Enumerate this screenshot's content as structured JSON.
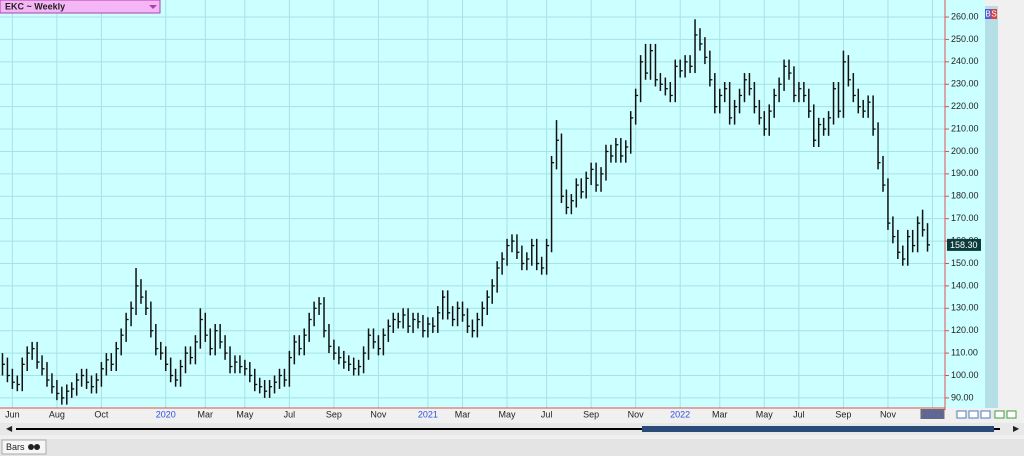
{
  "chart_data": {
    "type": "ohlc",
    "title": "EKC ~ Weekly",
    "tab_label": "Bars",
    "side_labels": [
      "B",
      "S"
    ],
    "color": "#111111",
    "grid": true,
    "ylim": [
      85.5,
      267.6
    ],
    "yticks": [
      {
        "value": 90,
        "label": "90.00"
      },
      {
        "value": 100,
        "label": "100.00"
      },
      {
        "value": 110,
        "label": "110.00"
      },
      {
        "value": 120,
        "label": "120.00"
      },
      {
        "value": 130,
        "label": "130.00"
      },
      {
        "value": 140,
        "label": "140.00"
      },
      {
        "value": 150,
        "label": "150.00"
      },
      {
        "value": 160,
        "label": "160.00"
      },
      {
        "value": 170,
        "label": "170.00"
      },
      {
        "value": 180,
        "label": "180.00"
      },
      {
        "value": 190,
        "label": "190.00"
      },
      {
        "value": 200,
        "label": "200.00"
      },
      {
        "value": 210,
        "label": "210.00"
      },
      {
        "value": 220,
        "label": "220.00"
      },
      {
        "value": 230,
        "label": "230.00"
      },
      {
        "value": 240,
        "label": "240.00"
      },
      {
        "value": 250,
        "label": "250.00"
      },
      {
        "value": 260,
        "label": "260.00"
      }
    ],
    "xticks": [
      {
        "value": 2,
        "label": "Jun"
      },
      {
        "value": 11,
        "label": "Aug"
      },
      {
        "value": 20,
        "label": "Oct"
      },
      {
        "value": 33,
        "label": "2020"
      },
      {
        "value": 41,
        "label": "Mar"
      },
      {
        "value": 49,
        "label": "May"
      },
      {
        "value": 58,
        "label": "Jul"
      },
      {
        "value": 67,
        "label": "Sep"
      },
      {
        "value": 76,
        "label": "Nov"
      },
      {
        "value": 86,
        "label": "2021"
      },
      {
        "value": 93,
        "label": "Mar"
      },
      {
        "value": 102,
        "label": "May"
      },
      {
        "value": 110,
        "label": "Jul"
      },
      {
        "value": 119,
        "label": "Sep"
      },
      {
        "value": 128,
        "label": "Nov"
      },
      {
        "value": 137,
        "label": "2022"
      },
      {
        "value": 145,
        "label": "Mar"
      },
      {
        "value": 154,
        "label": "May"
      },
      {
        "value": 161,
        "label": "Jul"
      },
      {
        "value": 170,
        "label": "Sep"
      },
      {
        "value": 179,
        "label": "Nov"
      },
      {
        "value": 188,
        "label": "2023"
      }
    ],
    "last_price": {
      "value": 158.3,
      "label": "158.30"
    },
    "close": [
      105,
      100,
      97,
      96,
      105,
      110,
      112,
      106,
      103,
      98,
      95,
      92,
      90,
      93,
      94,
      98,
      100,
      97,
      95,
      98,
      103,
      107,
      105,
      112,
      118,
      125,
      130,
      140,
      135,
      130,
      120,
      112,
      110,
      105,
      100,
      98,
      104,
      110,
      108,
      115,
      125,
      118,
      112,
      120,
      115,
      110,
      104,
      106,
      104,
      103,
      100,
      96,
      95,
      93,
      95,
      97,
      100,
      98,
      108,
      115,
      112,
      118,
      125,
      130,
      132,
      120,
      113,
      110,
      108,
      106,
      105,
      103,
      104,
      110,
      118,
      115,
      112,
      118,
      122,
      125,
      124,
      127,
      122,
      125,
      124,
      120,
      123,
      122,
      128,
      135,
      128,
      125,
      130,
      127,
      122,
      120,
      125,
      130,
      135,
      140,
      148,
      152,
      158,
      160,
      155,
      150,
      152,
      158,
      150,
      148,
      158,
      195,
      205,
      180,
      175,
      178,
      185,
      182,
      188,
      192,
      185,
      190,
      200,
      198,
      203,
      198,
      202,
      215,
      225,
      240,
      235,
      245,
      232,
      230,
      228,
      225,
      238,
      236,
      240,
      238,
      252,
      248,
      242,
      232,
      220,
      225,
      228,
      215,
      220,
      225,
      232,
      228,
      220,
      215,
      210,
      218,
      225,
      230,
      238,
      235,
      225,
      228,
      225,
      218,
      205,
      212,
      210,
      215,
      228,
      218,
      240,
      232,
      225,
      220,
      218,
      222,
      210,
      195,
      185,
      168,
      162,
      155,
      152,
      162,
      158,
      168,
      165,
      158.3
    ],
    "high": [
      110,
      108,
      103,
      100,
      108,
      113,
      115,
      115,
      109,
      106,
      101,
      98,
      95,
      96,
      97,
      101,
      103,
      103,
      100,
      101,
      106,
      110,
      110,
      115,
      121,
      128,
      133,
      148,
      143,
      138,
      133,
      123,
      115,
      113,
      108,
      103,
      107,
      113,
      113,
      118,
      130,
      128,
      121,
      123,
      123,
      118,
      113,
      109,
      109,
      107,
      106,
      103,
      99,
      98,
      98,
      100,
      103,
      103,
      111,
      118,
      118,
      121,
      128,
      133,
      135,
      135,
      123,
      116,
      113,
      111,
      109,
      108,
      107,
      113,
      121,
      121,
      118,
      121,
      125,
      128,
      128,
      130,
      130,
      128,
      128,
      127,
      126,
      126,
      131,
      138,
      138,
      131,
      133,
      133,
      130,
      125,
      128,
      133,
      138,
      143,
      151,
      155,
      161,
      163,
      163,
      158,
      155,
      161,
      161,
      153,
      161,
      198,
      214,
      208,
      183,
      181,
      188,
      188,
      191,
      195,
      195,
      193,
      203,
      203,
      206,
      206,
      205,
      218,
      228,
      243,
      248,
      248,
      248,
      235,
      233,
      231,
      241,
      241,
      243,
      243,
      259,
      255,
      251,
      245,
      235,
      228,
      231,
      231,
      223,
      228,
      235,
      235,
      231,
      223,
      218,
      221,
      228,
      233,
      241,
      241,
      238,
      231,
      231,
      228,
      221,
      215,
      215,
      218,
      231,
      231,
      245,
      243,
      235,
      228,
      223,
      225,
      225,
      213,
      198,
      188,
      171,
      165,
      158,
      165,
      165,
      171,
      174,
      168
    ],
    "low": [
      100,
      97,
      94,
      93,
      93,
      102,
      107,
      103,
      100,
      95,
      92,
      89,
      87,
      87,
      90,
      91,
      95,
      94,
      92,
      92,
      95,
      100,
      102,
      102,
      109,
      115,
      122,
      127,
      132,
      127,
      117,
      109,
      107,
      102,
      97,
      95,
      95,
      101,
      105,
      105,
      112,
      115,
      109,
      109,
      112,
      107,
      101,
      101,
      101,
      100,
      97,
      93,
      92,
      90,
      90,
      92,
      94,
      95,
      95,
      105,
      109,
      109,
      115,
      122,
      127,
      117,
      110,
      107,
      105,
      103,
      102,
      100,
      100,
      101,
      107,
      112,
      109,
      109,
      115,
      119,
      121,
      121,
      119,
      119,
      121,
      117,
      117,
      119,
      119,
      125,
      125,
      122,
      122,
      124,
      119,
      117,
      117,
      122,
      127,
      132,
      137,
      145,
      149,
      155,
      152,
      147,
      147,
      149,
      147,
      145,
      145,
      155,
      192,
      177,
      172,
      172,
      175,
      179,
      179,
      185,
      182,
      182,
      187,
      195,
      195,
      195,
      195,
      199,
      212,
      222,
      232,
      232,
      229,
      227,
      225,
      222,
      222,
      233,
      233,
      235,
      235,
      245,
      239,
      229,
      217,
      217,
      222,
      212,
      212,
      217,
      222,
      225,
      217,
      212,
      207,
      207,
      215,
      222,
      227,
      232,
      222,
      222,
      222,
      215,
      202,
      202,
      207,
      207,
      212,
      215,
      215,
      229,
      222,
      217,
      215,
      215,
      207,
      192,
      182,
      165,
      159,
      152,
      149,
      149,
      155,
      155,
      162,
      155.3
    ]
  }
}
